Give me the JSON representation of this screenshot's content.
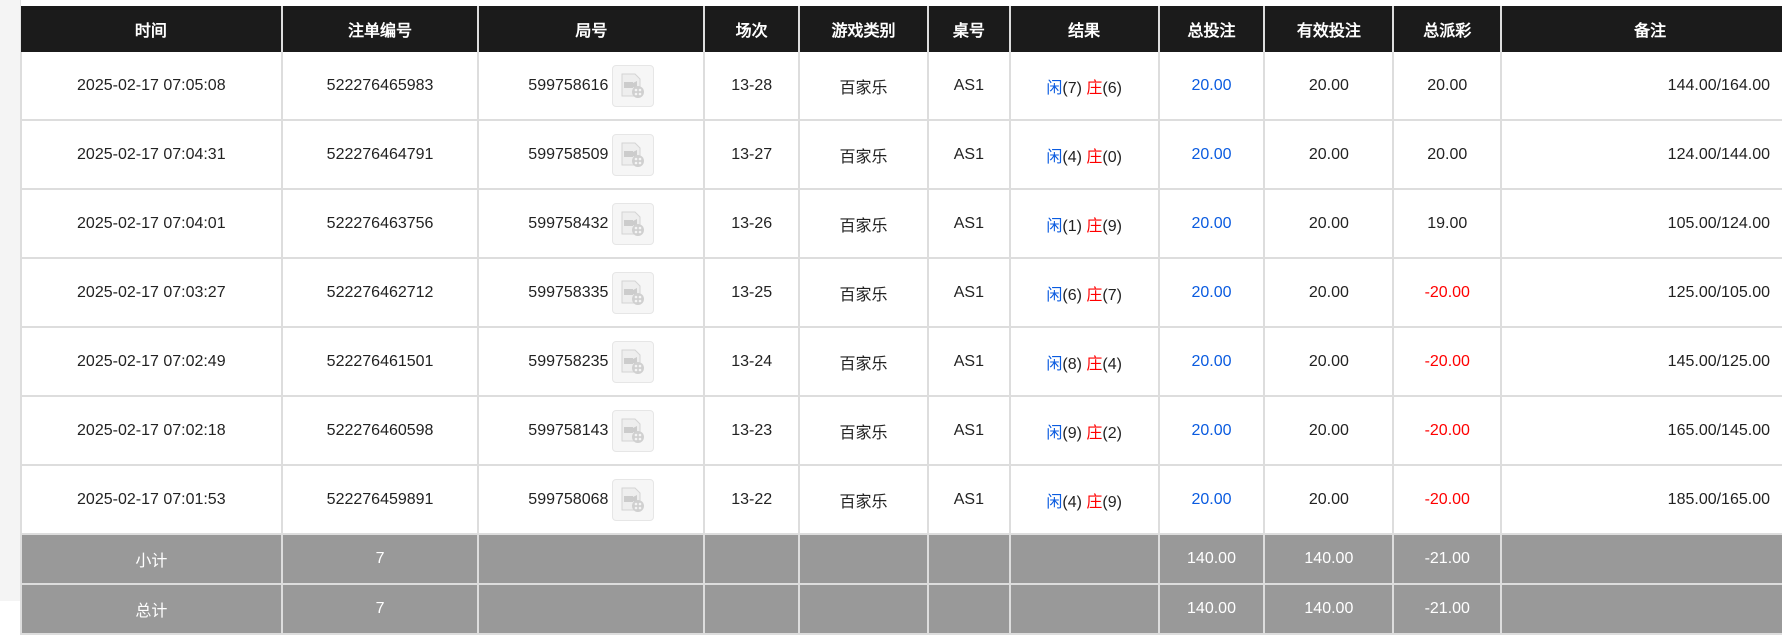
{
  "headers": [
    "时间",
    "注单编号",
    "局号",
    "场次",
    "游戏类别",
    "桌号",
    "结果",
    "总投注",
    "有效投注",
    "总派彩",
    "备注"
  ],
  "rows": [
    {
      "time": "2025-02-17 07:05:08",
      "order": "522276465983",
      "round": "599758616",
      "session": "13-28",
      "game": "百家乐",
      "table": "AS1",
      "player_label": "闲",
      "player": "(7)",
      "banker_label": "庄",
      "banker": "(6)",
      "bet": "20.00",
      "valid": "20.00",
      "payout": "20.00",
      "payout_negative": false,
      "remark": "144.00/164.00"
    },
    {
      "time": "2025-02-17 07:04:31",
      "order": "522276464791",
      "round": "599758509",
      "session": "13-27",
      "game": "百家乐",
      "table": "AS1",
      "player_label": "闲",
      "player": "(4)",
      "banker_label": "庄",
      "banker": "(0)",
      "bet": "20.00",
      "valid": "20.00",
      "payout": "20.00",
      "payout_negative": false,
      "remark": "124.00/144.00"
    },
    {
      "time": "2025-02-17 07:04:01",
      "order": "522276463756",
      "round": "599758432",
      "session": "13-26",
      "game": "百家乐",
      "table": "AS1",
      "player_label": "闲",
      "player": "(1)",
      "banker_label": "庄",
      "banker": "(9)",
      "bet": "20.00",
      "valid": "20.00",
      "payout": "19.00",
      "payout_negative": false,
      "remark": "105.00/124.00"
    },
    {
      "time": "2025-02-17 07:03:27",
      "order": "522276462712",
      "round": "599758335",
      "session": "13-25",
      "game": "百家乐",
      "table": "AS1",
      "player_label": "闲",
      "player": "(6)",
      "banker_label": "庄",
      "banker": "(7)",
      "bet": "20.00",
      "valid": "20.00",
      "payout": "-20.00",
      "payout_negative": true,
      "remark": "125.00/105.00"
    },
    {
      "time": "2025-02-17 07:02:49",
      "order": "522276461501",
      "round": "599758235",
      "session": "13-24",
      "game": "百家乐",
      "table": "AS1",
      "player_label": "闲",
      "player": "(8)",
      "banker_label": "庄",
      "banker": "(4)",
      "bet": "20.00",
      "valid": "20.00",
      "payout": "-20.00",
      "payout_negative": true,
      "remark": "145.00/125.00"
    },
    {
      "time": "2025-02-17 07:02:18",
      "order": "522276460598",
      "round": "599758143",
      "session": "13-23",
      "game": "百家乐",
      "table": "AS1",
      "player_label": "闲",
      "player": "(9)",
      "banker_label": "庄",
      "banker": "(2)",
      "bet": "20.00",
      "valid": "20.00",
      "payout": "-20.00",
      "payout_negative": true,
      "remark": "165.00/145.00"
    },
    {
      "time": "2025-02-17 07:01:53",
      "order": "522276459891",
      "round": "599758068",
      "session": "13-22",
      "game": "百家乐",
      "table": "AS1",
      "player_label": "闲",
      "player": "(4)",
      "banker_label": "庄",
      "banker": "(9)",
      "bet": "20.00",
      "valid": "20.00",
      "payout": "-20.00",
      "payout_negative": true,
      "remark": "185.00/165.00"
    }
  ],
  "summary": [
    {
      "label": "小计",
      "count": "7",
      "bet": "140.00",
      "valid": "140.00",
      "payout": "-21.00"
    },
    {
      "label": "总计",
      "count": "7",
      "bet": "140.00",
      "valid": "140.00",
      "payout": "-21.00"
    }
  ],
  "colors": {
    "header_bg": "#1b1b1b",
    "summary_bg": "#999999",
    "bet_blue": "#0a5be0",
    "negative_red": "#ff0000"
  },
  "icons": {
    "replay": "video-replay-icon"
  }
}
